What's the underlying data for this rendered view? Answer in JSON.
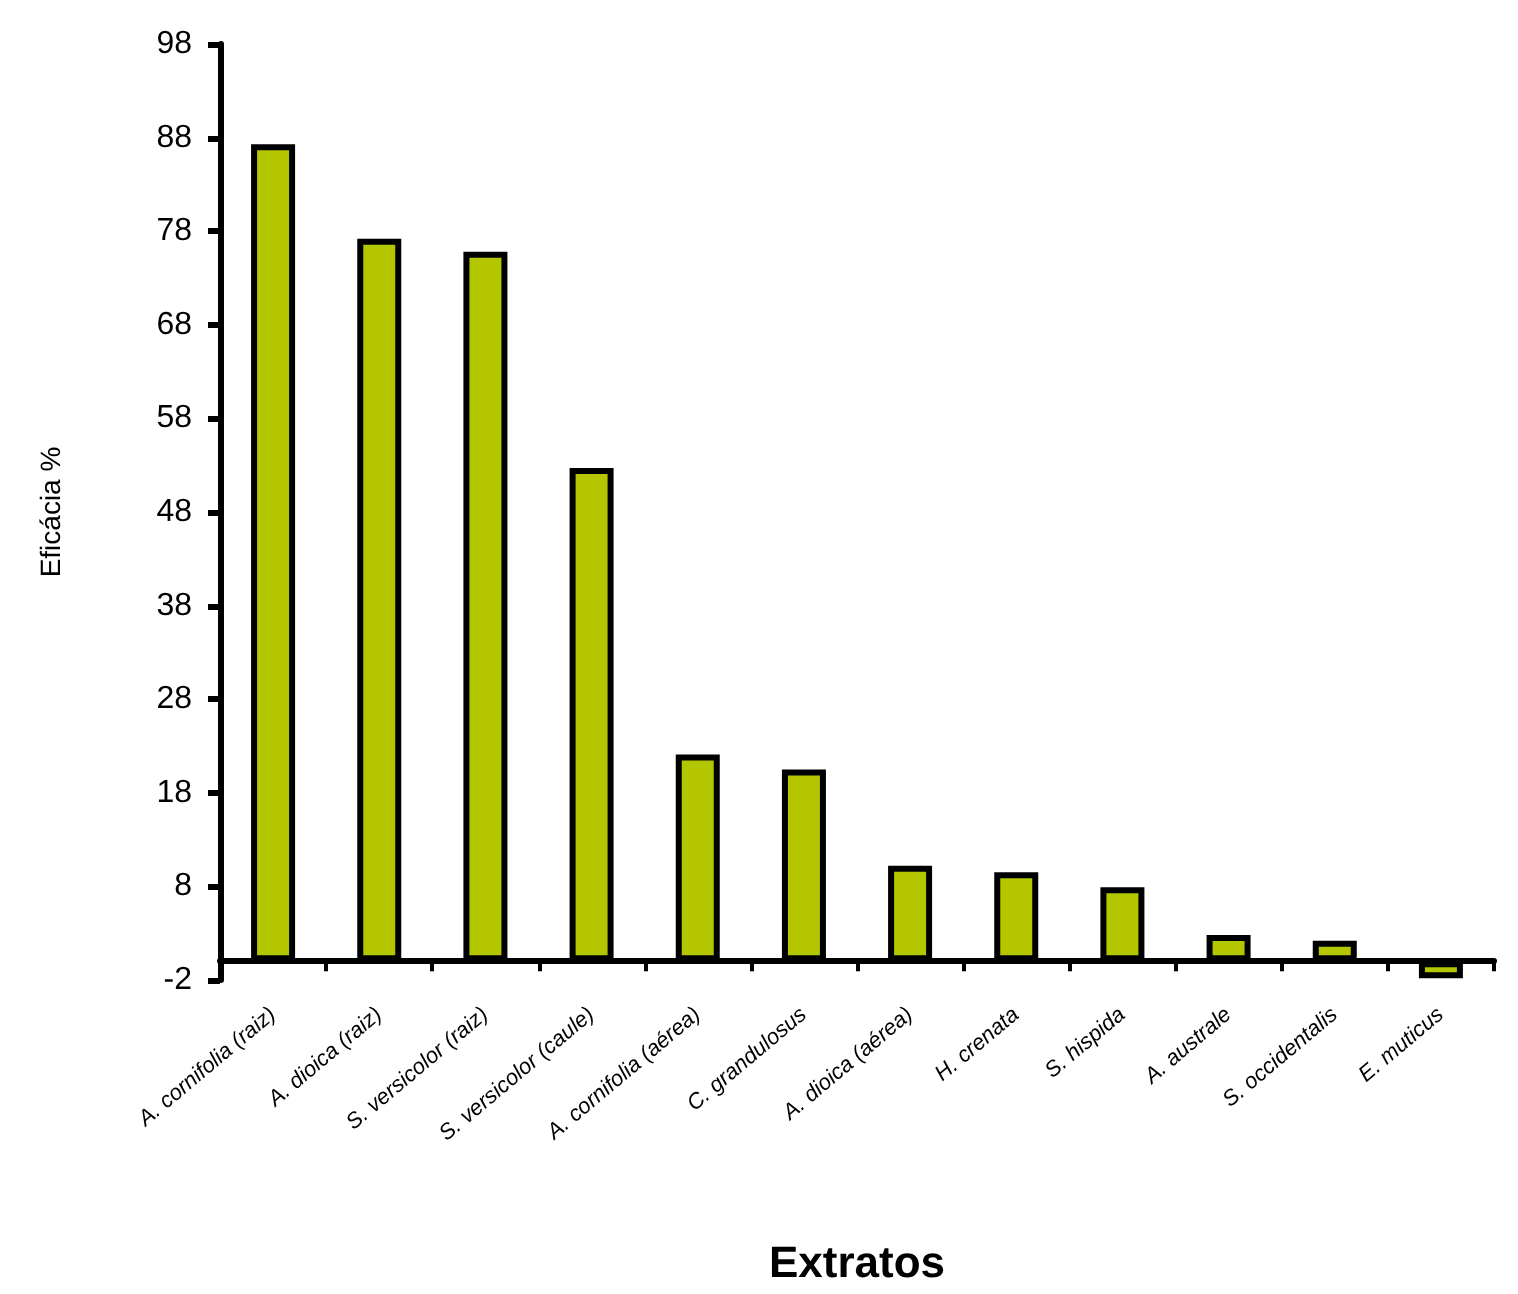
{
  "chart_data": {
    "type": "bar",
    "xlabel": "Extratos",
    "ylabel": "Eficácia %",
    "categories": [
      "A. cornifolia (raiz)",
      "A. dioica (raiz)",
      "S. versicolor (raiz)",
      "S. versicolor (caule)",
      "A. cornifolia (aérea)",
      "C. grandulosus",
      "A. dioica (aérea)",
      "H. crenata",
      "S. hispida",
      "A. australe",
      "S. occidentalis",
      "E. muticus"
    ],
    "values": [
      87.3,
      77.2,
      75.8,
      52.7,
      22.1,
      20.5,
      10.2,
      9.5,
      7.9,
      2.8,
      2.2,
      -1.8
    ],
    "color": "#b3c600",
    "ylim": [
      -2,
      98
    ],
    "yticks": [
      -2,
      8,
      18,
      28,
      38,
      48,
      58,
      68,
      78,
      88,
      98
    ],
    "grid": false
  }
}
